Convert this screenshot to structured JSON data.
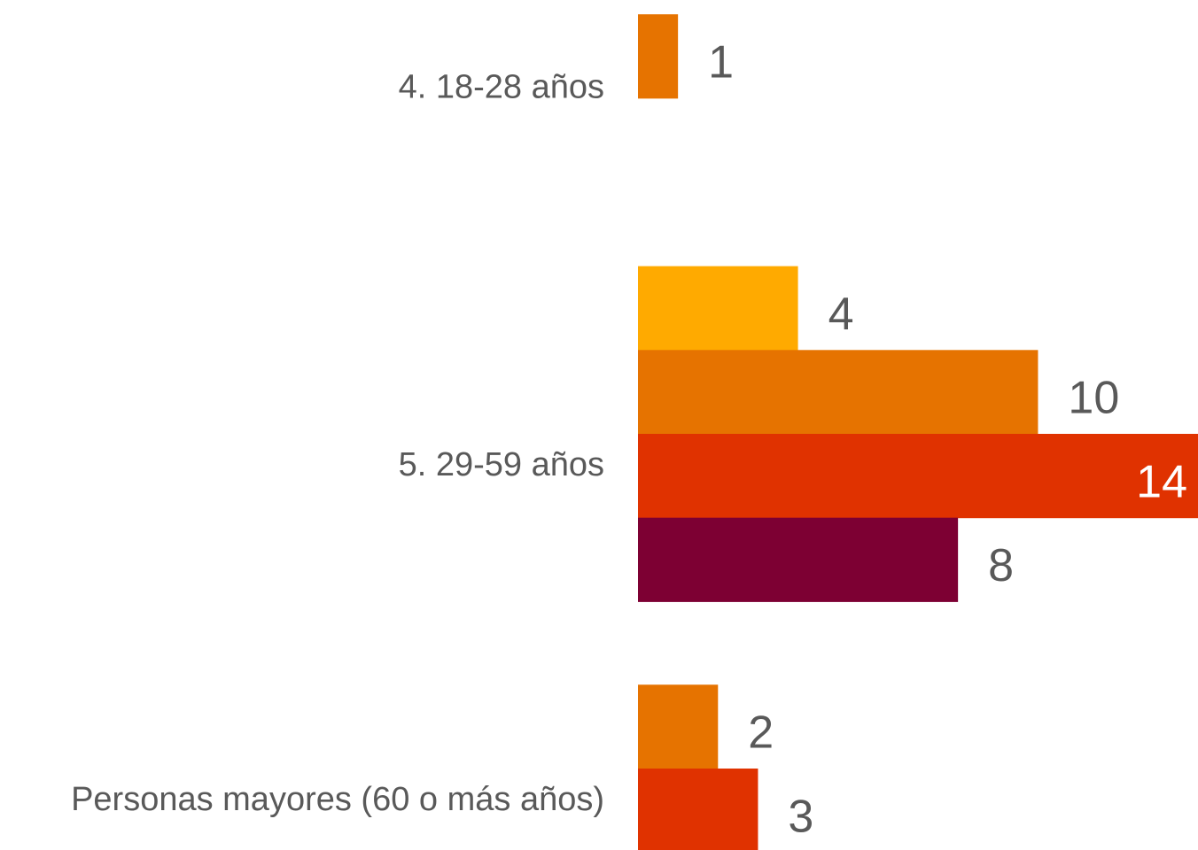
{
  "chart_data": {
    "type": "bar",
    "orientation": "horizontal",
    "title": "",
    "xlabel": "",
    "ylabel": "",
    "xlim": [
      0,
      14
    ],
    "grid": false,
    "legend": "none",
    "categories": [
      "4. 18-28 años",
      "5. 29-59 años",
      "Personas mayores (60 o más años)"
    ],
    "groups": [
      {
        "category": "4. 18-28 años",
        "bars": [
          {
            "value": 1,
            "color": "#E67300",
            "label": "1"
          }
        ]
      },
      {
        "category": "5. 29-59 años",
        "bars": [
          {
            "value": 4,
            "color": "#FFAA00",
            "label": "4"
          },
          {
            "value": 10,
            "color": "#E67300",
            "label": "10"
          },
          {
            "value": 14,
            "color": "#E03200",
            "label": "14"
          },
          {
            "value": 8,
            "color": "#7D0033",
            "label": "8"
          }
        ]
      },
      {
        "category": "Personas mayores (60 o más años)",
        "bars": [
          {
            "value": 2,
            "color": "#E67300",
            "label": "2"
          },
          {
            "value": 3,
            "color": "#E03200",
            "label": "3"
          }
        ]
      }
    ],
    "colors": {
      "label_text": "#595959",
      "label_inside_text": "#ffffff"
    }
  }
}
